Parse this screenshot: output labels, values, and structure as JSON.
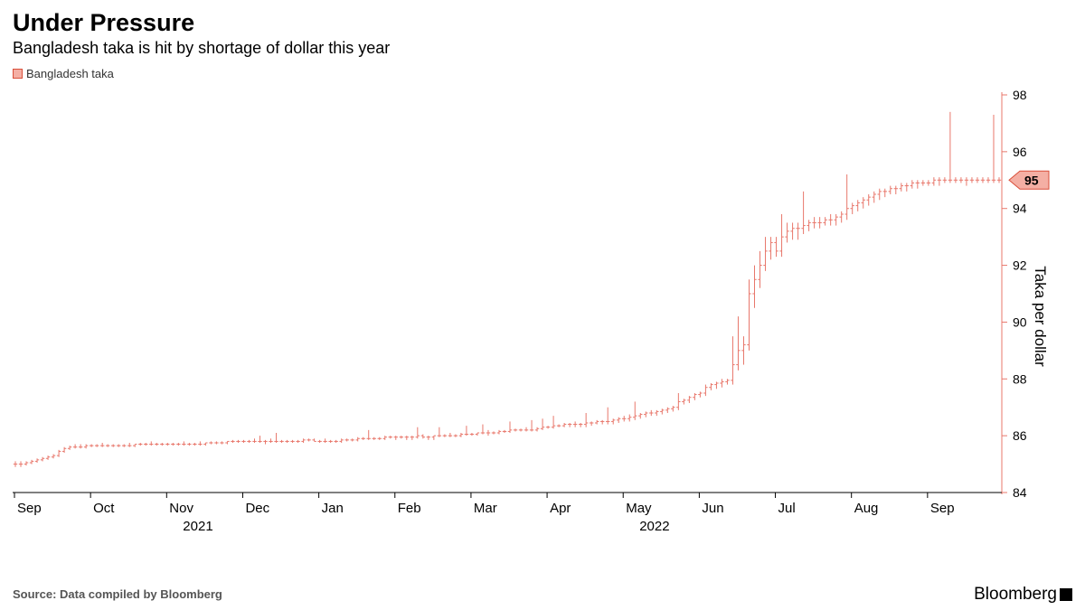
{
  "title": "Under Pressure",
  "subtitle": "Bangladesh taka is hit by shortage of dollar this year",
  "legend": {
    "label": "Bangladesh taka",
    "color": "#f4afa4",
    "border": "#d94f3a"
  },
  "source": "Source: Data compiled by Bloomberg",
  "brand": "Bloomberg",
  "chart": {
    "type": "ohlc",
    "series_color": "#e8776b",
    "background_color": "#ffffff",
    "axis_color": "#000000",
    "tick_color": "#e8776b",
    "font_size_axis": 14,
    "ylabel": "Taka per dollar",
    "ylim": [
      84,
      98
    ],
    "ytick_step": 2,
    "yticks": [
      84,
      86,
      88,
      90,
      92,
      94,
      96,
      98
    ],
    "last_value": 95,
    "last_value_badge": {
      "bg": "#f4afa4",
      "border": "#d94f3a",
      "text": "#000000"
    },
    "xaxis": {
      "months": [
        "Sep",
        "Oct",
        "Nov",
        "Dec",
        "Jan",
        "Feb",
        "Mar",
        "Apr",
        "May",
        "Jun",
        "Jul",
        "Aug",
        "Sep"
      ],
      "year_marks": [
        {
          "label": "2021",
          "at_index": 2
        },
        {
          "label": "2022",
          "at_index": 8
        }
      ],
      "label_fontsize": 15
    },
    "data": [
      {
        "o": 85.0,
        "h": 85.1,
        "l": 84.9,
        "c": 85.0
      },
      {
        "o": 85.0,
        "h": 85.1,
        "l": 84.9,
        "c": 85.0
      },
      {
        "o": 85.0,
        "h": 85.1,
        "l": 84.95,
        "c": 85.05
      },
      {
        "o": 85.05,
        "h": 85.15,
        "l": 85.0,
        "c": 85.1
      },
      {
        "o": 85.1,
        "h": 85.2,
        "l": 85.05,
        "c": 85.15
      },
      {
        "o": 85.15,
        "h": 85.25,
        "l": 85.1,
        "c": 85.2
      },
      {
        "o": 85.2,
        "h": 85.3,
        "l": 85.15,
        "c": 85.25
      },
      {
        "o": 85.25,
        "h": 85.35,
        "l": 85.2,
        "c": 85.3
      },
      {
        "o": 85.3,
        "h": 85.5,
        "l": 85.25,
        "c": 85.45
      },
      {
        "o": 85.45,
        "h": 85.6,
        "l": 85.4,
        "c": 85.55
      },
      {
        "o": 85.55,
        "h": 85.65,
        "l": 85.5,
        "c": 85.6
      },
      {
        "o": 85.6,
        "h": 85.7,
        "l": 85.55,
        "c": 85.6
      },
      {
        "o": 85.6,
        "h": 85.7,
        "l": 85.55,
        "c": 85.6
      },
      {
        "o": 85.6,
        "h": 85.7,
        "l": 85.55,
        "c": 85.65
      },
      {
        "o": 85.65,
        "h": 85.7,
        "l": 85.6,
        "c": 85.65
      },
      {
        "o": 85.65,
        "h": 85.7,
        "l": 85.6,
        "c": 85.65
      },
      {
        "o": 85.65,
        "h": 85.75,
        "l": 85.6,
        "c": 85.65
      },
      {
        "o": 85.65,
        "h": 85.7,
        "l": 85.6,
        "c": 85.65
      },
      {
        "o": 85.65,
        "h": 85.7,
        "l": 85.6,
        "c": 85.65
      },
      {
        "o": 85.65,
        "h": 85.7,
        "l": 85.6,
        "c": 85.65
      },
      {
        "o": 85.65,
        "h": 85.7,
        "l": 85.6,
        "c": 85.65
      },
      {
        "o": 85.65,
        "h": 85.75,
        "l": 85.6,
        "c": 85.65
      },
      {
        "o": 85.65,
        "h": 85.7,
        "l": 85.6,
        "c": 85.7
      },
      {
        "o": 85.7,
        "h": 85.75,
        "l": 85.65,
        "c": 85.7
      },
      {
        "o": 85.7,
        "h": 85.75,
        "l": 85.65,
        "c": 85.7
      },
      {
        "o": 85.7,
        "h": 85.8,
        "l": 85.65,
        "c": 85.7
      },
      {
        "o": 85.7,
        "h": 85.75,
        "l": 85.65,
        "c": 85.7
      },
      {
        "o": 85.7,
        "h": 85.75,
        "l": 85.65,
        "c": 85.7
      },
      {
        "o": 85.7,
        "h": 85.75,
        "l": 85.65,
        "c": 85.7
      },
      {
        "o": 85.7,
        "h": 85.75,
        "l": 85.65,
        "c": 85.7
      },
      {
        "o": 85.7,
        "h": 85.75,
        "l": 85.65,
        "c": 85.7
      },
      {
        "o": 85.7,
        "h": 85.8,
        "l": 85.65,
        "c": 85.7
      },
      {
        "o": 85.7,
        "h": 85.75,
        "l": 85.65,
        "c": 85.7
      },
      {
        "o": 85.7,
        "h": 85.75,
        "l": 85.65,
        "c": 85.7
      },
      {
        "o": 85.7,
        "h": 85.8,
        "l": 85.65,
        "c": 85.7
      },
      {
        "o": 85.7,
        "h": 85.75,
        "l": 85.65,
        "c": 85.75
      },
      {
        "o": 85.75,
        "h": 85.8,
        "l": 85.7,
        "c": 85.75
      },
      {
        "o": 85.75,
        "h": 85.8,
        "l": 85.7,
        "c": 85.75
      },
      {
        "o": 85.75,
        "h": 85.8,
        "l": 85.7,
        "c": 85.75
      },
      {
        "o": 85.75,
        "h": 85.8,
        "l": 85.7,
        "c": 85.8
      },
      {
        "o": 85.8,
        "h": 85.85,
        "l": 85.75,
        "c": 85.8
      },
      {
        "o": 85.8,
        "h": 85.85,
        "l": 85.75,
        "c": 85.8
      },
      {
        "o": 85.8,
        "h": 85.85,
        "l": 85.75,
        "c": 85.8
      },
      {
        "o": 85.8,
        "h": 85.85,
        "l": 85.75,
        "c": 85.8
      },
      {
        "o": 85.8,
        "h": 85.9,
        "l": 85.75,
        "c": 85.8
      },
      {
        "o": 85.8,
        "h": 86.0,
        "l": 85.75,
        "c": 85.8
      },
      {
        "o": 85.8,
        "h": 85.85,
        "l": 85.7,
        "c": 85.8
      },
      {
        "o": 85.8,
        "h": 85.9,
        "l": 85.75,
        "c": 85.8
      },
      {
        "o": 85.8,
        "h": 86.1,
        "l": 85.75,
        "c": 85.8
      },
      {
        "o": 85.8,
        "h": 85.85,
        "l": 85.75,
        "c": 85.8
      },
      {
        "o": 85.8,
        "h": 85.85,
        "l": 85.75,
        "c": 85.8
      },
      {
        "o": 85.8,
        "h": 85.85,
        "l": 85.75,
        "c": 85.8
      },
      {
        "o": 85.8,
        "h": 85.85,
        "l": 85.75,
        "c": 85.8
      },
      {
        "o": 85.8,
        "h": 85.9,
        "l": 85.75,
        "c": 85.85
      },
      {
        "o": 85.85,
        "h": 85.9,
        "l": 85.8,
        "c": 85.85
      },
      {
        "o": 85.85,
        "h": 85.9,
        "l": 85.8,
        "c": 85.8
      },
      {
        "o": 85.8,
        "h": 85.85,
        "l": 85.75,
        "c": 85.8
      },
      {
        "o": 85.8,
        "h": 85.9,
        "l": 85.75,
        "c": 85.8
      },
      {
        "o": 85.8,
        "h": 85.85,
        "l": 85.75,
        "c": 85.8
      },
      {
        "o": 85.8,
        "h": 85.85,
        "l": 85.75,
        "c": 85.8
      },
      {
        "o": 85.8,
        "h": 85.9,
        "l": 85.75,
        "c": 85.85
      },
      {
        "o": 85.85,
        "h": 85.9,
        "l": 85.8,
        "c": 85.85
      },
      {
        "o": 85.85,
        "h": 85.9,
        "l": 85.8,
        "c": 85.85
      },
      {
        "o": 85.85,
        "h": 85.95,
        "l": 85.8,
        "c": 85.9
      },
      {
        "o": 85.9,
        "h": 85.95,
        "l": 85.85,
        "c": 85.9
      },
      {
        "o": 85.9,
        "h": 86.2,
        "l": 85.85,
        "c": 85.9
      },
      {
        "o": 85.9,
        "h": 85.95,
        "l": 85.85,
        "c": 85.9
      },
      {
        "o": 85.9,
        "h": 85.95,
        "l": 85.85,
        "c": 85.9
      },
      {
        "o": 85.9,
        "h": 86.0,
        "l": 85.85,
        "c": 85.95
      },
      {
        "o": 85.95,
        "h": 86.0,
        "l": 85.9,
        "c": 85.95
      },
      {
        "o": 85.95,
        "h": 86.0,
        "l": 85.85,
        "c": 85.95
      },
      {
        "o": 85.95,
        "h": 86.0,
        "l": 85.9,
        "c": 85.95
      },
      {
        "o": 85.95,
        "h": 86.0,
        "l": 85.85,
        "c": 85.95
      },
      {
        "o": 85.95,
        "h": 86.0,
        "l": 85.85,
        "c": 85.95
      },
      {
        "o": 85.95,
        "h": 86.3,
        "l": 85.9,
        "c": 86.0
      },
      {
        "o": 86.0,
        "h": 86.05,
        "l": 85.9,
        "c": 85.95
      },
      {
        "o": 85.95,
        "h": 86.0,
        "l": 85.85,
        "c": 85.95
      },
      {
        "o": 85.95,
        "h": 86.0,
        "l": 85.85,
        "c": 86.0
      },
      {
        "o": 86.0,
        "h": 86.3,
        "l": 85.95,
        "c": 86.0
      },
      {
        "o": 86.0,
        "h": 86.05,
        "l": 85.95,
        "c": 86.0
      },
      {
        "o": 86.0,
        "h": 86.1,
        "l": 85.95,
        "c": 86.0
      },
      {
        "o": 86.0,
        "h": 86.05,
        "l": 85.95,
        "c": 86.0
      },
      {
        "o": 86.0,
        "h": 86.1,
        "l": 85.95,
        "c": 86.05
      },
      {
        "o": 86.05,
        "h": 86.35,
        "l": 86.0,
        "c": 86.05
      },
      {
        "o": 86.05,
        "h": 86.1,
        "l": 86.0,
        "c": 86.05
      },
      {
        "o": 86.05,
        "h": 86.1,
        "l": 86.0,
        "c": 86.1
      },
      {
        "o": 86.1,
        "h": 86.4,
        "l": 86.05,
        "c": 86.1
      },
      {
        "o": 86.1,
        "h": 86.2,
        "l": 86.0,
        "c": 86.1
      },
      {
        "o": 86.1,
        "h": 86.15,
        "l": 86.05,
        "c": 86.1
      },
      {
        "o": 86.1,
        "h": 86.2,
        "l": 86.05,
        "c": 86.15
      },
      {
        "o": 86.15,
        "h": 86.2,
        "l": 86.1,
        "c": 86.15
      },
      {
        "o": 86.15,
        "h": 86.5,
        "l": 86.1,
        "c": 86.2
      },
      {
        "o": 86.2,
        "h": 86.25,
        "l": 86.15,
        "c": 86.2
      },
      {
        "o": 86.2,
        "h": 86.25,
        "l": 86.15,
        "c": 86.2
      },
      {
        "o": 86.2,
        "h": 86.3,
        "l": 86.15,
        "c": 86.2
      },
      {
        "o": 86.2,
        "h": 86.55,
        "l": 86.15,
        "c": 86.2
      },
      {
        "o": 86.2,
        "h": 86.3,
        "l": 86.15,
        "c": 86.25
      },
      {
        "o": 86.25,
        "h": 86.6,
        "l": 86.2,
        "c": 86.3
      },
      {
        "o": 86.3,
        "h": 86.35,
        "l": 86.25,
        "c": 86.3
      },
      {
        "o": 86.3,
        "h": 86.7,
        "l": 86.25,
        "c": 86.35
      },
      {
        "o": 86.35,
        "h": 86.4,
        "l": 86.3,
        "c": 86.35
      },
      {
        "o": 86.35,
        "h": 86.45,
        "l": 86.3,
        "c": 86.4
      },
      {
        "o": 86.4,
        "h": 86.45,
        "l": 86.3,
        "c": 86.4
      },
      {
        "o": 86.4,
        "h": 86.5,
        "l": 86.3,
        "c": 86.4
      },
      {
        "o": 86.4,
        "h": 86.45,
        "l": 86.3,
        "c": 86.4
      },
      {
        "o": 86.4,
        "h": 86.8,
        "l": 86.3,
        "c": 86.45
      },
      {
        "o": 86.45,
        "h": 86.5,
        "l": 86.35,
        "c": 86.45
      },
      {
        "o": 86.45,
        "h": 86.55,
        "l": 86.4,
        "c": 86.5
      },
      {
        "o": 86.5,
        "h": 86.55,
        "l": 86.4,
        "c": 86.5
      },
      {
        "o": 86.5,
        "h": 87.0,
        "l": 86.4,
        "c": 86.5
      },
      {
        "o": 86.5,
        "h": 86.6,
        "l": 86.4,
        "c": 86.55
      },
      {
        "o": 86.55,
        "h": 86.65,
        "l": 86.45,
        "c": 86.6
      },
      {
        "o": 86.6,
        "h": 86.7,
        "l": 86.5,
        "c": 86.6
      },
      {
        "o": 86.6,
        "h": 86.75,
        "l": 86.5,
        "c": 86.65
      },
      {
        "o": 86.65,
        "h": 87.2,
        "l": 86.55,
        "c": 86.7
      },
      {
        "o": 86.7,
        "h": 86.8,
        "l": 86.6,
        "c": 86.75
      },
      {
        "o": 86.75,
        "h": 86.85,
        "l": 86.65,
        "c": 86.8
      },
      {
        "o": 86.8,
        "h": 86.9,
        "l": 86.7,
        "c": 86.8
      },
      {
        "o": 86.8,
        "h": 86.9,
        "l": 86.7,
        "c": 86.85
      },
      {
        "o": 86.85,
        "h": 86.95,
        "l": 86.75,
        "c": 86.9
      },
      {
        "o": 86.9,
        "h": 87.0,
        "l": 86.8,
        "c": 86.95
      },
      {
        "o": 86.95,
        "h": 87.05,
        "l": 86.85,
        "c": 87.0
      },
      {
        "o": 87.0,
        "h": 87.5,
        "l": 86.9,
        "c": 87.2
      },
      {
        "o": 87.2,
        "h": 87.3,
        "l": 87.1,
        "c": 87.25
      },
      {
        "o": 87.25,
        "h": 87.4,
        "l": 87.15,
        "c": 87.35
      },
      {
        "o": 87.35,
        "h": 87.5,
        "l": 87.25,
        "c": 87.45
      },
      {
        "o": 87.45,
        "h": 87.55,
        "l": 87.35,
        "c": 87.5
      },
      {
        "o": 87.5,
        "h": 87.8,
        "l": 87.4,
        "c": 87.7
      },
      {
        "o": 87.7,
        "h": 87.85,
        "l": 87.6,
        "c": 87.8
      },
      {
        "o": 87.8,
        "h": 87.9,
        "l": 87.65,
        "c": 87.85
      },
      {
        "o": 87.85,
        "h": 88.0,
        "l": 87.7,
        "c": 87.9
      },
      {
        "o": 87.9,
        "h": 88.0,
        "l": 87.8,
        "c": 87.95
      },
      {
        "o": 87.95,
        "h": 89.5,
        "l": 87.8,
        "c": 88.5
      },
      {
        "o": 88.5,
        "h": 90.2,
        "l": 88.3,
        "c": 89.0
      },
      {
        "o": 89.0,
        "h": 89.5,
        "l": 88.5,
        "c": 89.2
      },
      {
        "o": 89.2,
        "h": 91.5,
        "l": 89.0,
        "c": 91.0
      },
      {
        "o": 91.0,
        "h": 92.0,
        "l": 90.5,
        "c": 91.5
      },
      {
        "o": 91.5,
        "h": 92.5,
        "l": 91.2,
        "c": 92.0
      },
      {
        "o": 92.0,
        "h": 93.0,
        "l": 91.8,
        "c": 92.5
      },
      {
        "o": 92.5,
        "h": 93.0,
        "l": 92.2,
        "c": 92.8
      },
      {
        "o": 92.8,
        "h": 93.0,
        "l": 92.3,
        "c": 92.5
      },
      {
        "o": 92.5,
        "h": 93.8,
        "l": 92.3,
        "c": 93.0
      },
      {
        "o": 93.0,
        "h": 93.5,
        "l": 92.8,
        "c": 93.2
      },
      {
        "o": 93.2,
        "h": 93.5,
        "l": 92.9,
        "c": 93.3
      },
      {
        "o": 93.3,
        "h": 93.5,
        "l": 92.9,
        "c": 93.3
      },
      {
        "o": 93.3,
        "h": 94.6,
        "l": 93.1,
        "c": 93.4
      },
      {
        "o": 93.4,
        "h": 93.6,
        "l": 93.2,
        "c": 93.5
      },
      {
        "o": 93.5,
        "h": 93.7,
        "l": 93.3,
        "c": 93.5
      },
      {
        "o": 93.5,
        "h": 93.7,
        "l": 93.3,
        "c": 93.5
      },
      {
        "o": 93.5,
        "h": 93.7,
        "l": 93.4,
        "c": 93.6
      },
      {
        "o": 93.6,
        "h": 93.8,
        "l": 93.4,
        "c": 93.6
      },
      {
        "o": 93.6,
        "h": 93.8,
        "l": 93.4,
        "c": 93.7
      },
      {
        "o": 93.7,
        "h": 93.9,
        "l": 93.5,
        "c": 93.8
      },
      {
        "o": 93.8,
        "h": 95.2,
        "l": 93.6,
        "c": 94.0
      },
      {
        "o": 94.0,
        "h": 94.2,
        "l": 93.8,
        "c": 94.1
      },
      {
        "o": 94.1,
        "h": 94.3,
        "l": 93.9,
        "c": 94.2
      },
      {
        "o": 94.2,
        "h": 94.4,
        "l": 94.0,
        "c": 94.3
      },
      {
        "o": 94.3,
        "h": 94.5,
        "l": 94.1,
        "c": 94.4
      },
      {
        "o": 94.4,
        "h": 94.6,
        "l": 94.2,
        "c": 94.5
      },
      {
        "o": 94.5,
        "h": 94.7,
        "l": 94.3,
        "c": 94.6
      },
      {
        "o": 94.6,
        "h": 94.7,
        "l": 94.4,
        "c": 94.6
      },
      {
        "o": 94.6,
        "h": 94.8,
        "l": 94.5,
        "c": 94.7
      },
      {
        "o": 94.7,
        "h": 94.8,
        "l": 94.5,
        "c": 94.7
      },
      {
        "o": 94.7,
        "h": 94.9,
        "l": 94.6,
        "c": 94.8
      },
      {
        "o": 94.8,
        "h": 94.9,
        "l": 94.6,
        "c": 94.8
      },
      {
        "o": 94.8,
        "h": 95.0,
        "l": 94.7,
        "c": 94.9
      },
      {
        "o": 94.9,
        "h": 95.0,
        "l": 94.7,
        "c": 94.9
      },
      {
        "o": 94.9,
        "h": 95.0,
        "l": 94.8,
        "c": 94.9
      },
      {
        "o": 94.9,
        "h": 95.0,
        "l": 94.8,
        "c": 94.9
      },
      {
        "o": 94.9,
        "h": 95.1,
        "l": 94.8,
        "c": 95.0
      },
      {
        "o": 95.0,
        "h": 95.1,
        "l": 94.8,
        "c": 95.0
      },
      {
        "o": 95.0,
        "h": 95.1,
        "l": 94.9,
        "c": 95.0
      },
      {
        "o": 95.0,
        "h": 97.4,
        "l": 94.9,
        "c": 95.0
      },
      {
        "o": 95.0,
        "h": 95.1,
        "l": 94.9,
        "c": 95.0
      },
      {
        "o": 95.0,
        "h": 95.1,
        "l": 94.9,
        "c": 95.0
      },
      {
        "o": 95.0,
        "h": 95.1,
        "l": 94.8,
        "c": 95.0
      },
      {
        "o": 95.0,
        "h": 95.1,
        "l": 94.9,
        "c": 95.0
      },
      {
        "o": 95.0,
        "h": 95.1,
        "l": 94.9,
        "c": 95.0
      },
      {
        "o": 95.0,
        "h": 95.1,
        "l": 94.9,
        "c": 95.0
      },
      {
        "o": 95.0,
        "h": 95.1,
        "l": 94.9,
        "c": 95.0
      },
      {
        "o": 95.0,
        "h": 97.3,
        "l": 94.9,
        "c": 95.0
      },
      {
        "o": 95.0,
        "h": 95.1,
        "l": 94.9,
        "c": 95.0
      }
    ]
  }
}
